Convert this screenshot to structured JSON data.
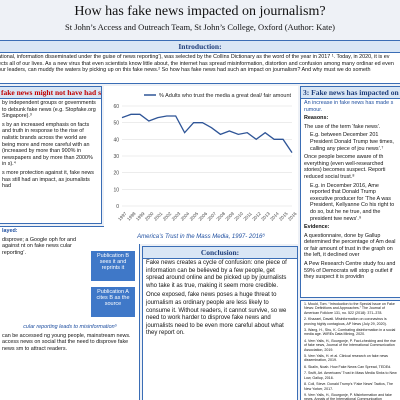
{
  "header": {
    "title": "How has fake news impacted on journalism?",
    "subtitle": "St John’s Access and Outreach Team, St John’s College, Oxford (Author: Kate)"
  },
  "intro": {
    "heading": "Introduction:",
    "text": "ational, information disseminated under the guise of news reporting’), was selected by the Collins Dictionary as the word of the year in 2017 ¹. Today, in 2020, it is ev ects all of our lives. As a new virus that even scientists know little about, the internet has spread misinformation, distortion and confusion among many ordinar ed even our leaders, can muddy the waters by picking up on this fake news.² So how has fake news had such an impact on journalism? And why must we do someth"
  },
  "section2": {
    "heading": "fake news might not have had such an impact:",
    "items": [
      "by independent groups or governments to debunk fake news (e.g. Stopfake.org Singapore).³",
      "s by an increased emphasis on facts and truth in response to the rise of nalistic brands across the world are being more and more careful with an (increased by more than 900% in newspapers and by more than 2000% in s).⁴",
      "s more protection against it, fake news has still had an impact, as journalists had"
    ]
  },
  "section4": {
    "heading": "layed:",
    "text": "disprove; a Google oph for and against nt on fake news cular reporting’.",
    "boxes": [
      "Publication B sees it and reprints it",
      "Publication A cites B as the source"
    ],
    "subheading": "cular reporting leads to misinformation⁶",
    "text2": "can be accessed ng young people, mainstream news. access news on social that the need to disprove fake news sm to attract readers."
  },
  "chart": {
    "type": "line",
    "legend": "% Adults who trust the media a great deal/ fair amount",
    "caption": "America’s Trust in the Mass Media, 1997- 2016⁸",
    "color": "#2f5597",
    "x": [
      1997,
      1998,
      1999,
      2000,
      2001,
      2002,
      2003,
      2004,
      2005,
      2006,
      2007,
      2008,
      2009,
      2010,
      2011,
      2012,
      2013,
      2014,
      2015,
      2016
    ],
    "values": [
      53,
      55,
      55,
      51,
      53,
      54,
      54,
      44,
      50,
      50,
      47,
      43,
      45,
      43,
      44,
      40,
      44,
      40,
      40,
      32
    ],
    "xlim": [
      1997,
      2016
    ],
    "ylim": [
      0,
      60
    ],
    "yticks": [
      0,
      10,
      20,
      30,
      40,
      50,
      60
    ],
    "grid": true
  },
  "conclusion": {
    "heading": "Conclusion:",
    "paragraphs": [
      "Fake news creates a cycle of confusion: one piece of information can be believed by a few people, get spread around online and be picked up by journalists who take it as true, making it seem more credible.",
      "Once exposed, fake news poses a huge threat to journalism as ordinary people are less likely to consume it. Without readers, it cannot survive, so we need to work harder to disprove fake news and journalists need to be even more careful about what they report on."
    ]
  },
  "section3": {
    "heading": "3: Fake news has impacted on journalism",
    "intro": "An increase in fake news has made s rumour.",
    "reasons": "Reasons:",
    "items": [
      "The use of the term ‘fake news’.",
      "E.g. between December 201 President Donald Trump twe times, calling any piece of jou news’.⁷",
      "Once people become aware of th everything (even well-researched stories) becomes suspect. Reporti reduced social trust.⁸",
      "E.g. in December 2016, Ame reported that Donald Trump executive producer for ‘The A was President, Kellyanne Co his right to do so, but he ne true, and the president twe news’.⁹"
    ],
    "evidence": "Evidence:",
    "items2": [
      "A questionnaire, done by Gallup determined the percentage of Am deal or fair amount of trust in the graph on the left, it declined over",
      "A Pew Research Centre study fou and 59% of Democrats will stop g outlet if they suspect it is providin"
    ]
  },
  "references": [
    "1. Mould, Tom. “Introduction to the Special Issue on Fake News: Definitions and Approaches.” The Journal of American Folklore 131, no. 522 (2018): 371–378.",
    "2. Khazaei, Davati. Misinformation on coronavirus is proving highly contagious, AP News (July 29, 2020).",
    "3. Wang, H., Shu, K. Combating disinformation in a social media age. WIREs Data Mining, 2020.",
    "4. Vern Yalls, H., Bourgonje, P. Fact-checking and the rise of fake news, Journal of the International Communication Association, 2019.",
    "5. Vern Yalls, H. et al. Clinical research on fake news dissemination, 2019.",
    "6. Skalin, Noah. How Fake News Can Spread, TEDEd.",
    "7. Swift, Art. Americans’ Trust in Mass Media Sinks to New Low, Gallup, 2016.",
    "8. Coll, Steve. Donald Trump’s ‘Fake News’ Tactics, The New Yorker, 2017.",
    "9. Vern Yalls, H., Bourgonje, P. Misinformation and fake news, Annals of the International Communication Association, 2019.",
    "10. Images from the St John’s College permission to reproduce."
  ]
}
